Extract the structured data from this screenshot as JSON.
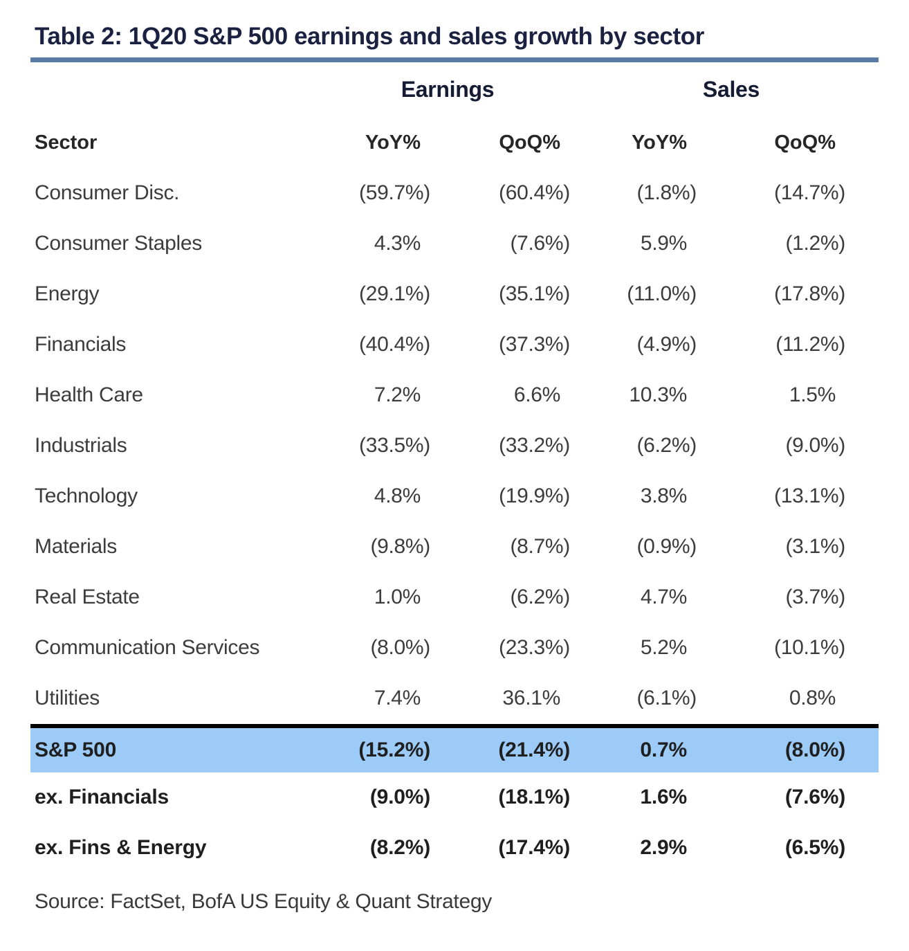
{
  "title": "Table 2: 1Q20 S&P 500 earnings and sales growth by sector",
  "header": {
    "groups": {
      "earnings": "Earnings",
      "sales": "Sales"
    },
    "sector": "Sector",
    "subcolumns": [
      "YoY%",
      "QoQ%",
      "YoY%",
      "QoQ%"
    ]
  },
  "rows": [
    {
      "sector": "Consumer Disc.",
      "values": [
        "(59.7%)",
        "(60.4%)",
        "(1.8%)",
        "(14.7%)"
      ]
    },
    {
      "sector": "Consumer Staples",
      "values": [
        "4.3%",
        "(7.6%)",
        "5.9%",
        "(1.2%)"
      ]
    },
    {
      "sector": "Energy",
      "values": [
        "(29.1%)",
        "(35.1%)",
        "(11.0%)",
        "(17.8%)"
      ]
    },
    {
      "sector": "Financials",
      "values": [
        "(40.4%)",
        "(37.3%)",
        "(4.9%)",
        "(11.2%)"
      ]
    },
    {
      "sector": "Health Care",
      "values": [
        "7.2%",
        "6.6%",
        "10.3%",
        "1.5%"
      ]
    },
    {
      "sector": "Industrials",
      "values": [
        "(33.5%)",
        "(33.2%)",
        "(6.2%)",
        "(9.0%)"
      ]
    },
    {
      "sector": "Technology",
      "values": [
        "4.8%",
        "(19.9%)",
        "3.8%",
        "(13.1%)"
      ]
    },
    {
      "sector": "Materials",
      "values": [
        "(9.8%)",
        "(8.7%)",
        "(0.9%)",
        "(3.1%)"
      ]
    },
    {
      "sector": "Real Estate",
      "values": [
        "1.0%",
        "(6.2%)",
        "4.7%",
        "(3.7%)"
      ]
    },
    {
      "sector": "Communication Services",
      "values": [
        "(8.0%)",
        "(23.3%)",
        "5.2%",
        "(10.1%)"
      ]
    },
    {
      "sector": "Utilities",
      "values": [
        "7.4%",
        "36.1%",
        "(6.1%)",
        "0.8%"
      ]
    }
  ],
  "summary": {
    "sp500": {
      "label": "S&P 500",
      "values": [
        "(15.2%)",
        "(21.4%)",
        "0.7%",
        "(8.0%)"
      ]
    },
    "ex_financials": {
      "label": "ex. Financials",
      "values": [
        "(9.0%)",
        "(18.1%)",
        "1.6%",
        "(7.6%)"
      ]
    },
    "ex_fins_energy": {
      "label": "ex. Fins & Energy",
      "values": [
        "(8.2%)",
        "(17.4%)",
        "2.9%",
        "(6.5%)"
      ]
    }
  },
  "source": "Source: FactSet, BofA US Equity & Quant Strategy",
  "colors": {
    "title_navy": "#1b2140",
    "rule_blue": "#5b7ba7",
    "highlight_blue": "#9ccbf8",
    "summary_border": "#000000",
    "body_text": "#3c3c3c"
  },
  "chart_data": {
    "type": "table",
    "title": "Table 2: 1Q20 S&P 500 earnings and sales growth by sector",
    "columns": [
      "Sector",
      "Earnings YoY%",
      "Earnings QoQ%",
      "Sales YoY%",
      "Sales QoQ%"
    ],
    "column_groups": [
      "Earnings",
      "Sales"
    ],
    "negative_format": "parentheses",
    "rows": [
      {
        "sector": "Consumer Disc.",
        "earnings_yoy": -59.7,
        "earnings_qoq": -60.4,
        "sales_yoy": -1.8,
        "sales_qoq": -14.7
      },
      {
        "sector": "Consumer Staples",
        "earnings_yoy": 4.3,
        "earnings_qoq": -7.6,
        "sales_yoy": 5.9,
        "sales_qoq": -1.2
      },
      {
        "sector": "Energy",
        "earnings_yoy": -29.1,
        "earnings_qoq": -35.1,
        "sales_yoy": -11.0,
        "sales_qoq": -17.8
      },
      {
        "sector": "Financials",
        "earnings_yoy": -40.4,
        "earnings_qoq": -37.3,
        "sales_yoy": -4.9,
        "sales_qoq": -11.2
      },
      {
        "sector": "Health Care",
        "earnings_yoy": 7.2,
        "earnings_qoq": 6.6,
        "sales_yoy": 10.3,
        "sales_qoq": 1.5
      },
      {
        "sector": "Industrials",
        "earnings_yoy": -33.5,
        "earnings_qoq": -33.2,
        "sales_yoy": -6.2,
        "sales_qoq": -9.0
      },
      {
        "sector": "Technology",
        "earnings_yoy": 4.8,
        "earnings_qoq": -19.9,
        "sales_yoy": 3.8,
        "sales_qoq": -13.1
      },
      {
        "sector": "Materials",
        "earnings_yoy": -9.8,
        "earnings_qoq": -8.7,
        "sales_yoy": -0.9,
        "sales_qoq": -3.1
      },
      {
        "sector": "Real Estate",
        "earnings_yoy": 1.0,
        "earnings_qoq": -6.2,
        "sales_yoy": 4.7,
        "sales_qoq": -3.7
      },
      {
        "sector": "Communication Services",
        "earnings_yoy": -8.0,
        "earnings_qoq": -23.3,
        "sales_yoy": 5.2,
        "sales_qoq": -10.1
      },
      {
        "sector": "Utilities",
        "earnings_yoy": 7.4,
        "earnings_qoq": 36.1,
        "sales_yoy": -6.1,
        "sales_qoq": 0.8
      },
      {
        "sector": "S&P 500",
        "earnings_yoy": -15.2,
        "earnings_qoq": -21.4,
        "sales_yoy": 0.7,
        "sales_qoq": -8.0,
        "highlighted": true
      },
      {
        "sector": "ex. Financials",
        "earnings_yoy": -9.0,
        "earnings_qoq": -18.1,
        "sales_yoy": 1.6,
        "sales_qoq": -7.6
      },
      {
        "sector": "ex. Fins & Energy",
        "earnings_yoy": -8.2,
        "earnings_qoq": -17.4,
        "sales_yoy": 2.9,
        "sales_qoq": -6.5
      }
    ],
    "source": "Source: FactSet, BofA US Equity & Quant Strategy"
  }
}
